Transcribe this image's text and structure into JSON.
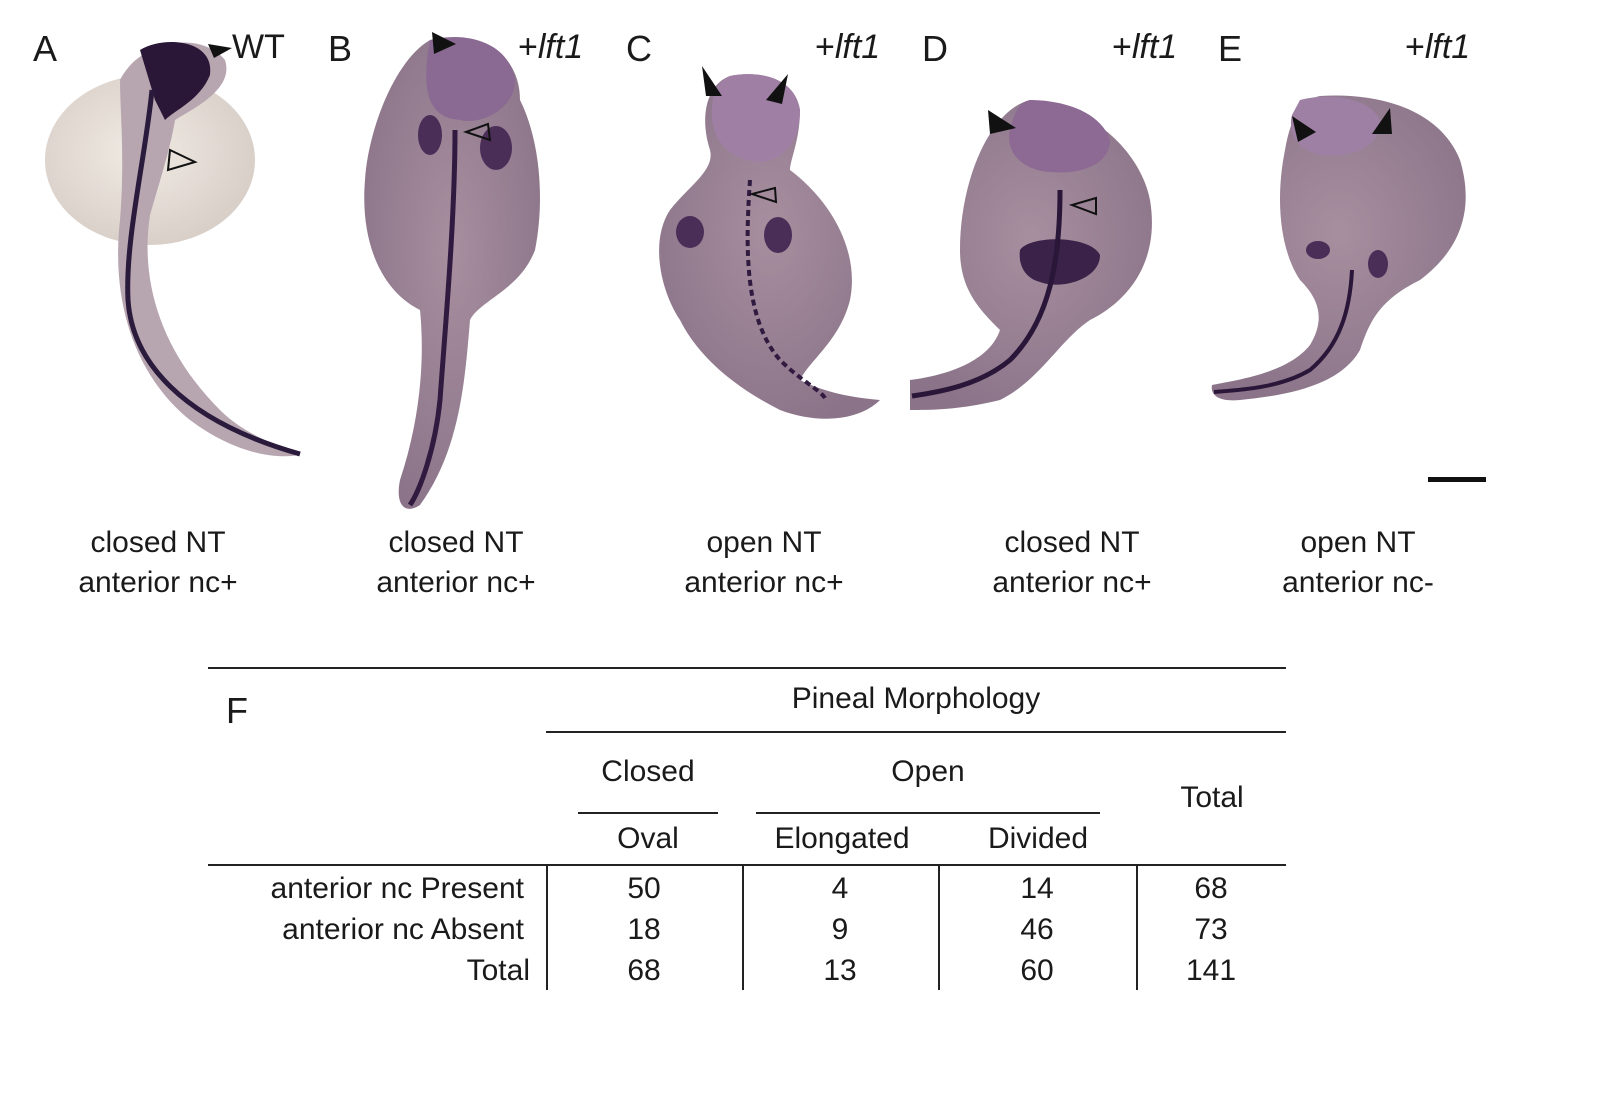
{
  "panels": [
    {
      "letter": "A",
      "condition": "WT",
      "caption_line1": "closed NT",
      "caption_line2": "anterior nc+"
    },
    {
      "letter": "B",
      "condition": "+lft1",
      "caption_line1": "closed NT",
      "caption_line2": "anterior nc+"
    },
    {
      "letter": "C",
      "condition": "+lft1",
      "caption_line1": "open NT",
      "caption_line2": "anterior nc+"
    },
    {
      "letter": "D",
      "condition": "+lft1",
      "caption_line1": "closed NT",
      "caption_line2": "anterior nc+"
    },
    {
      "letter": "E",
      "condition": "+lft1",
      "caption_line1": "open NT",
      "caption_line2": "anterior nc-"
    }
  ],
  "lft1_plus": "+",
  "lft1_gene": "lft1",
  "table": {
    "panel_letter": "F",
    "group_header": "Pineal Morphology",
    "closed_label": "Closed",
    "open_label": "Open",
    "total_label": "Total",
    "sub_oval": "Oval",
    "sub_elongated": "Elongated",
    "sub_divided": "Divided",
    "rows": [
      {
        "label": "anterior nc Present",
        "values": [
          "50",
          "4",
          "14",
          "68"
        ]
      },
      {
        "label": "anterior nc Absent",
        "values": [
          "18",
          "9",
          "46",
          "73"
        ]
      },
      {
        "label": "Total",
        "values": [
          "68",
          "13",
          "60",
          "141"
        ]
      }
    ]
  },
  "colors": {
    "stain": "#3a1f4e",
    "embryo_body": "#9c8898",
    "yolk": "#e4dcd4"
  }
}
